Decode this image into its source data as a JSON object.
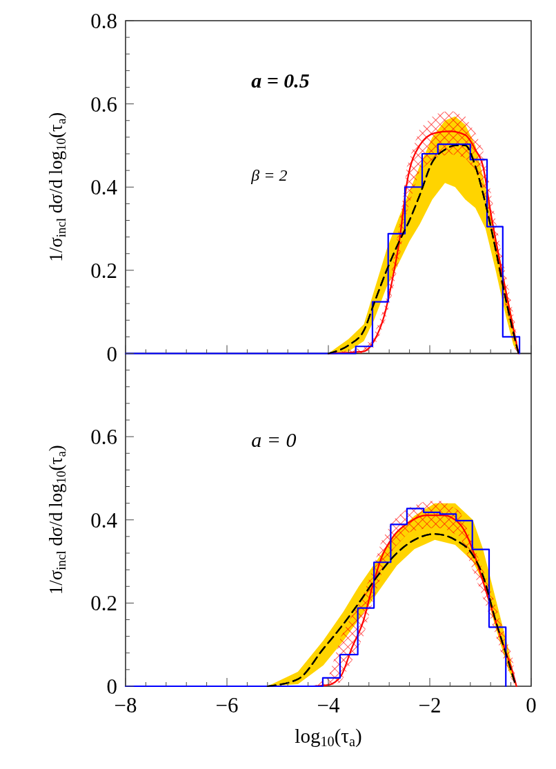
{
  "chart_data": [
    {
      "type": "line",
      "ylabel": "1/σ$_{incl}$ dσ/d log$_{10}$(τ$_{a}$)",
      "xlim": [
        -8,
        0
      ],
      "ylim": [
        0,
        0.8
      ],
      "tick_labels": "y",
      "xticks": [
        -8,
        {
          "value": -7.6,
          "label": null
        },
        {
          "value": -7.2,
          "label": null
        },
        {
          "value": -6.8,
          "label": null
        },
        {
          "value": -6.4,
          "label": null
        },
        -6,
        {
          "value": -5.6,
          "label": null
        },
        {
          "value": -5.2,
          "label": null
        },
        {
          "value": -4.8,
          "label": null
        },
        {
          "value": -4.4,
          "label": null
        },
        -4,
        {
          "value": -3.6,
          "label": null
        },
        {
          "value": -3.2,
          "label": null
        },
        {
          "value": -2.8,
          "label": null
        },
        {
          "value": -2.4,
          "label": null
        },
        -2,
        {
          "value": -1.6,
          "label": null
        },
        {
          "value": -1.2,
          "label": null
        },
        {
          "value": -0.8,
          "label": null
        },
        {
          "value": -0.4,
          "label": null
        },
        0
      ],
      "yticks": [
        0,
        {
          "value": 0.04,
          "label": null
        },
        {
          "value": 0.08,
          "label": null
        },
        {
          "value": 0.12,
          "label": null
        },
        {
          "value": 0.16,
          "label": null
        },
        0.2,
        {
          "value": 0.24,
          "label": null
        },
        {
          "value": 0.28,
          "label": null
        },
        {
          "value": 0.32,
          "label": null
        },
        {
          "value": 0.36,
          "label": null
        },
        0.4,
        {
          "value": 0.44,
          "label": null
        },
        {
          "value": 0.48,
          "label": null
        },
        {
          "value": 0.52,
          "label": null
        },
        {
          "value": 0.56,
          "label": null
        },
        0.6,
        {
          "value": 0.64,
          "label": null
        },
        {
          "value": 0.68,
          "label": null
        },
        {
          "value": 0.72,
          "label": null
        },
        {
          "value": 0.76,
          "label": null
        },
        0.8
      ],
      "annotations": [
        "a = 0.5",
        "β = 2"
      ],
      "series": [
        {
          "color": "#ff0000",
          "x": [
            -4.0,
            -3.5,
            -3.3,
            -3.1,
            -2.9,
            -2.75,
            -2.6,
            -2.45,
            -2.2,
            -1.9,
            -1.6,
            -1.3,
            -1.1,
            -0.95,
            -0.8,
            -0.6,
            -0.45,
            -0.3,
            -0.25
          ],
          "values": [
            0,
            0.003,
            0.005,
            0.03,
            0.09,
            0.17,
            0.27,
            0.41,
            0.5,
            0.53,
            0.534,
            0.525,
            0.49,
            0.45,
            0.34,
            0.21,
            0.12,
            0.03,
            0
          ],
          "lower": [
            0,
            0,
            0,
            0.015,
            0.07,
            0.14,
            0.23,
            0.34,
            0.44,
            0.47,
            0.48,
            0.47,
            0.44,
            0.39,
            0.3,
            0.17,
            0.08,
            0,
            0
          ],
          "upper": [
            0,
            0.01,
            0.015,
            0.045,
            0.11,
            0.2,
            0.31,
            0.45,
            0.54,
            0.575,
            0.585,
            0.57,
            0.53,
            0.49,
            0.39,
            0.25,
            0.16,
            0.06,
            0
          ]
        },
        {
          "type": "line",
          "color": "#000000",
          "colors": [
            "#ffd400",
            "#ffd400",
            "#ffd400",
            "#ffd400",
            "#ffd400",
            "#ffd400",
            "#ffd400",
            "#ffd400",
            "#ffd400",
            "#ffd400",
            "#ffd400",
            "#ffd400",
            "#ffd400",
            "#ffd400",
            "#ffd400",
            "#ffd400",
            "#ffd400",
            "#ffd400"
          ],
          "line_style": "dashed",
          "x": [
            -4.0,
            -3.6,
            -3.3,
            -3.1,
            -2.85,
            -2.6,
            -2.4,
            -2.2,
            -1.95,
            -1.7,
            -1.5,
            -1.3,
            -1.1,
            -0.9,
            -0.7,
            -0.5,
            -0.35,
            -0.25
          ],
          "values": [
            0,
            0.02,
            0.055,
            0.12,
            0.2,
            0.27,
            0.32,
            0.38,
            0.46,
            0.49,
            0.5,
            0.5,
            0.45,
            0.36,
            0.25,
            0.13,
            0.05,
            0
          ],
          "lower": [
            0,
            0.005,
            0.03,
            0.08,
            0.16,
            0.22,
            0.27,
            0.31,
            0.37,
            0.41,
            0.4,
            0.37,
            0.35,
            0.3,
            0.2,
            0.09,
            0.02,
            0
          ],
          "upper": [
            0,
            0.035,
            0.07,
            0.15,
            0.25,
            0.33,
            0.39,
            0.45,
            0.52,
            0.56,
            0.57,
            0.55,
            0.5,
            0.4,
            0.28,
            0.16,
            0.07,
            0
          ]
        },
        {
          "type": "step",
          "color": "#0000ff",
          "x": [
            -8,
            -3.46,
            -3.13,
            -2.82,
            -2.49,
            -2.15,
            -1.84,
            -1.2,
            -0.87,
            -0.56,
            -0.23
          ],
          "values": [
            0,
            0.017,
            0.124,
            0.288,
            0.4,
            0.48,
            0.503,
            0.466,
            0.305,
            0.04,
            0
          ]
        }
      ]
    },
    {
      "type": "line",
      "xlabel": "log$_{10}$(τ$_{a}$)",
      "ylabel": "1/σ$_{incl}$ dσ/d log$_{10}$(τ$_{a}$)",
      "xlim": [
        -8,
        0
      ],
      "ylim": [
        0,
        0.8
      ],
      "xticks": [
        -8,
        {
          "value": -7.6,
          "label": null
        },
        {
          "value": -7.2,
          "label": null
        },
        {
          "value": -6.8,
          "label": null
        },
        {
          "value": -6.4,
          "label": null
        },
        -6,
        {
          "value": -5.6,
          "label": null
        },
        {
          "value": -5.2,
          "label": null
        },
        {
          "value": -4.8,
          "label": null
        },
        {
          "value": -4.4,
          "label": null
        },
        -4,
        {
          "value": -3.6,
          "label": null
        },
        {
          "value": -3.2,
          "label": null
        },
        {
          "value": -2.8,
          "label": null
        },
        {
          "value": -2.4,
          "label": null
        },
        -2,
        {
          "value": -1.6,
          "label": null
        },
        {
          "value": -1.2,
          "label": null
        },
        {
          "value": -0.8,
          "label": null
        },
        {
          "value": -0.4,
          "label": null
        },
        0
      ],
      "yticks": [
        0,
        {
          "value": 0.04,
          "label": null
        },
        {
          "value": 0.08,
          "label": null
        },
        {
          "value": 0.12,
          "label": null
        },
        {
          "value": 0.16,
          "label": null
        },
        0.2,
        {
          "value": 0.24,
          "label": null
        },
        {
          "value": 0.28,
          "label": null
        },
        {
          "value": 0.32,
          "label": null
        },
        {
          "value": 0.36,
          "label": null
        },
        0.4,
        {
          "value": 0.44,
          "label": null
        },
        {
          "value": 0.48,
          "label": null
        },
        {
          "value": 0.52,
          "label": null
        },
        {
          "value": 0.56,
          "label": null
        },
        0.6,
        {
          "value": 0.64,
          "label": null
        },
        {
          "value": 0.68,
          "label": null
        },
        {
          "value": 0.72,
          "label": null
        },
        {
          "value": 0.76,
          "label": null
        },
        {
          "value": 0.8,
          "label": null
        }
      ],
      "annotations": [
        "a = 0"
      ],
      "series": [
        {
          "color": "#ff0000",
          "x": [
            -4.3,
            -4.0,
            -3.75,
            -3.54,
            -3.31,
            -3.13,
            -2.95,
            -2.72,
            -2.41,
            -2.08,
            -1.73,
            -1.4,
            -0.82,
            -0.59,
            -0.37,
            -0.29
          ],
          "values": [
            0,
            0.003,
            0.025,
            0.091,
            0.157,
            0.24,
            0.31,
            0.36,
            0.394,
            0.411,
            0.411,
            0.389,
            0.202,
            0.113,
            0.036,
            0
          ],
          "lower": [
            0,
            0,
            0.01,
            0.06,
            0.12,
            0.2,
            0.27,
            0.33,
            0.37,
            0.38,
            0.38,
            0.36,
            0.17,
            0.08,
            0.01,
            0
          ],
          "upper": [
            0,
            0.02,
            0.12,
            0.17,
            0.22,
            0.28,
            0.35,
            0.4,
            0.43,
            0.445,
            0.445,
            0.42,
            0.24,
            0.15,
            0.07,
            0
          ]
        },
        {
          "type": "line",
          "color": "#000000",
          "colors": [
            "#ffd400",
            "#ffd400",
            "#ffd400",
            "#ffd400",
            "#ffd400",
            "#ffd400",
            "#ffd400",
            "#ffd400",
            "#ffd400",
            "#ffd400",
            "#ffd400",
            "#ffd400",
            "#ffd400",
            "#ffd400",
            "#ffd400"
          ],
          "line_style": "dashed",
          "x": [
            -5.2,
            -4.6,
            -4.1,
            -3.7,
            -3.4,
            -3.0,
            -2.65,
            -2.3,
            -1.9,
            -1.5,
            -1.15,
            -0.95,
            -0.7,
            -0.45,
            -0.3
          ],
          "values": [
            0,
            0.017,
            0.09,
            0.15,
            0.2,
            0.27,
            0.32,
            0.352,
            0.366,
            0.352,
            0.315,
            0.265,
            0.157,
            0.06,
            0
          ],
          "lower": [
            0,
            0.005,
            0.05,
            0.11,
            0.16,
            0.23,
            0.29,
            0.33,
            0.352,
            0.34,
            0.3,
            0.25,
            0.14,
            0.04,
            0
          ],
          "upper": [
            0,
            0.035,
            0.11,
            0.18,
            0.24,
            0.31,
            0.37,
            0.41,
            0.44,
            0.44,
            0.4,
            0.33,
            0.21,
            0.09,
            0
          ]
        },
        {
          "type": "step",
          "color": "#0000ff",
          "x": [
            -8,
            -4.11,
            -3.77,
            -3.42,
            -3.1,
            -2.77,
            -2.45,
            -2.12,
            -1.8,
            -1.48,
            -1.16,
            -0.83,
            -0.5
          ],
          "values": [
            0,
            0.02,
            0.076,
            0.188,
            0.298,
            0.389,
            0.427,
            0.418,
            0.414,
            0.398,
            0.329,
            0.142,
            0
          ]
        }
      ]
    }
  ]
}
